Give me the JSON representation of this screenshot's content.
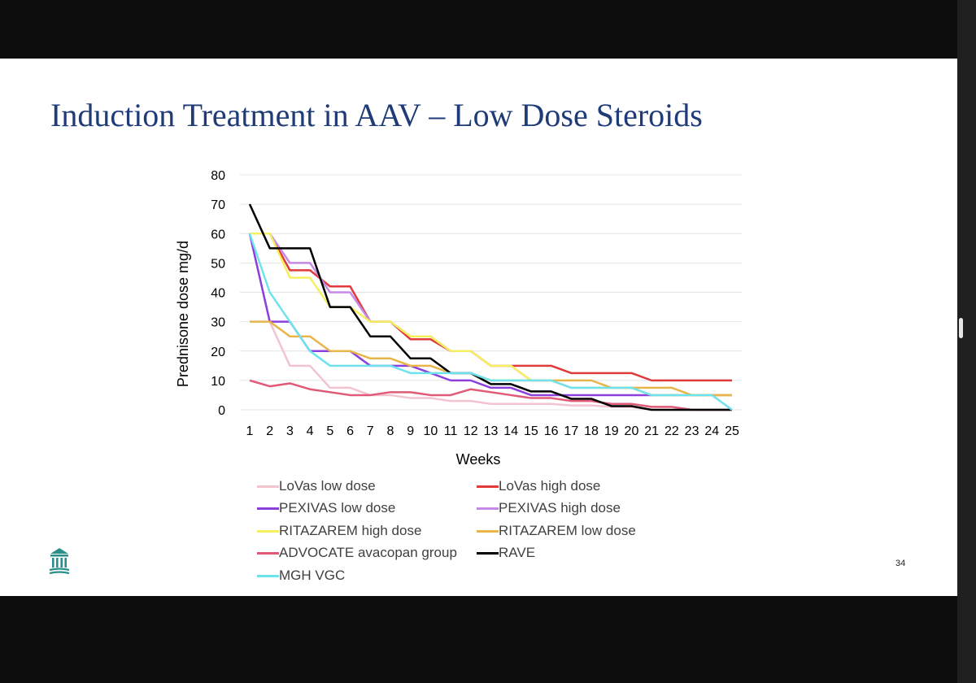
{
  "slide": {
    "title": "Induction Treatment in AAV – Low Dose Steroids",
    "page_number": "34",
    "logo_icon": "institution-building-icon",
    "accent_color": "#1f3b78"
  },
  "chart_data": {
    "type": "line",
    "title": "",
    "xlabel": "Weeks",
    "ylabel": "Prednisone dose mg/d",
    "ylim": [
      0,
      80
    ],
    "yticks": [
      0,
      10,
      20,
      30,
      40,
      50,
      60,
      70,
      80
    ],
    "x": [
      1,
      2,
      3,
      4,
      5,
      6,
      7,
      8,
      9,
      10,
      11,
      12,
      13,
      14,
      15,
      16,
      17,
      18,
      19,
      20,
      21,
      22,
      23,
      24,
      25
    ],
    "grid": true,
    "legend_position": "bottom",
    "series": [
      {
        "name": "LoVas low dose",
        "color": "#f2c4d0",
        "values": [
          60,
          30,
          15,
          15,
          7.5,
          7.5,
          5,
          5,
          4,
          4,
          3,
          3,
          2,
          2,
          2,
          2,
          1.5,
          1.5,
          1,
          1,
          0,
          0,
          0,
          0,
          0
        ]
      },
      {
        "name": "LoVas high dose",
        "color": "#e03a3a",
        "values": [
          60,
          60,
          47.5,
          47.5,
          42,
          42,
          30,
          30,
          24,
          24,
          20,
          20,
          15,
          15,
          15,
          15,
          12.5,
          12.5,
          12.5,
          12.5,
          10,
          10,
          10,
          10,
          10
        ]
      },
      {
        "name": "PEXIVAS low dose",
        "color": "#8b3fdc",
        "values": [
          60,
          30,
          30,
          20,
          20,
          20,
          15,
          15,
          15,
          12.5,
          10,
          10,
          7.5,
          7.5,
          5,
          5,
          5,
          5,
          5,
          5,
          5,
          5,
          5,
          5,
          5
        ]
      },
      {
        "name": "PEXIVAS high dose",
        "color": "#c58ae8",
        "values": [
          60,
          60,
          50,
          50,
          40,
          40,
          30,
          30,
          25,
          25,
          20,
          20,
          15,
          15,
          10,
          10,
          7.5,
          7.5,
          7.5,
          7.5,
          5,
          5,
          5,
          5,
          5
        ]
      },
      {
        "name": "RITAZAREM high dose",
        "color": "#f5f060",
        "values": [
          60,
          60,
          45,
          45,
          35,
          35,
          30,
          30,
          25,
          25,
          20,
          20,
          15,
          15,
          10,
          10,
          7.5,
          7.5,
          7.5,
          7.5,
          5,
          5,
          5,
          5,
          5
        ]
      },
      {
        "name": "RITAZAREM low dose",
        "color": "#e8b548",
        "values": [
          30,
          30,
          25,
          25,
          20,
          20,
          17.5,
          17.5,
          15,
          15,
          12.5,
          12.5,
          10,
          10,
          10,
          10,
          10,
          10,
          7.5,
          7.5,
          7.5,
          7.5,
          5,
          5,
          5
        ]
      },
      {
        "name": "ADVOCATE avacopan group",
        "color": "#e05a78",
        "values": [
          10,
          8,
          9,
          7,
          6,
          5,
          5,
          6,
          6,
          5,
          5,
          7,
          6,
          5,
          4,
          4,
          3,
          3,
          2,
          2,
          1,
          1,
          0,
          0,
          0
        ]
      },
      {
        "name": "RAVE",
        "color": "#000000",
        "values": [
          70,
          55,
          55,
          55,
          35,
          35,
          25,
          25,
          17.5,
          17.5,
          12.5,
          12.5,
          8.75,
          8.75,
          6.25,
          6.25,
          3.75,
          3.75,
          1.25,
          1.25,
          0,
          0,
          0,
          0,
          0
        ]
      },
      {
        "name": "MGH VGC",
        "color": "#6ee3ee",
        "values": [
          60,
          40,
          30,
          20,
          15,
          15,
          15,
          15,
          12.5,
          12.5,
          12.5,
          12.5,
          10,
          10,
          10,
          10,
          7.5,
          7.5,
          7.5,
          7.5,
          5,
          5,
          5,
          5,
          0
        ]
      }
    ]
  }
}
